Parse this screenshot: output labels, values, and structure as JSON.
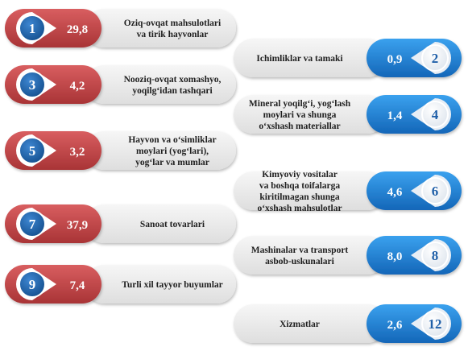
{
  "colors": {
    "left_pill": "#c5494c",
    "right_pill": "#1e80d6",
    "left_circle": "#1a5fa6",
    "label_bg": "#ececec"
  },
  "chart_data": {
    "type": "table",
    "items": [
      {
        "num": "1",
        "value": "29,8",
        "label": [
          "Oziq-ovqat mahsulotlari",
          "va tirik hayvonlar"
        ],
        "side": "left"
      },
      {
        "num": "2",
        "value": "0,9",
        "label": [
          "Ichimliklar va tamaki"
        ],
        "side": "right"
      },
      {
        "num": "3",
        "value": "4,2",
        "label": [
          "Nooziq-ovqat xomashyo,",
          "yoqilg‘idan tashqari"
        ],
        "side": "left"
      },
      {
        "num": "4",
        "value": "1,4",
        "label": [
          "Mineral yoqilg‘i, yog‘lash",
          "moylari va shunga",
          "o‘xshash materiallar"
        ],
        "side": "right"
      },
      {
        "num": "5",
        "value": "3,2",
        "label": [
          "Hayvon va o‘simliklar",
          "moylari (yog‘lari),",
          "yog‘lar va mumlar"
        ],
        "side": "left"
      },
      {
        "num": "6",
        "value": "4,6",
        "label": [
          "Kimyoviy vositalar",
          "va boshqa toifalarga",
          "kiritilmagan shunga",
          "o‘xshash mahsulotlar"
        ],
        "side": "right"
      },
      {
        "num": "7",
        "value": "37,9",
        "label": [
          "Sanoat tovarlari"
        ],
        "side": "left"
      },
      {
        "num": "8",
        "value": "8,0",
        "label": [
          "Mashinalar va transport",
          "asbob-uskunalari"
        ],
        "side": "right"
      },
      {
        "num": "9",
        "value": "7,4",
        "label": [
          "Turli xil tayyor buyumlar"
        ],
        "side": "left"
      },
      {
        "num": "12",
        "value": "2,6",
        "label": [
          "Xizmatlar"
        ],
        "side": "right"
      }
    ]
  }
}
